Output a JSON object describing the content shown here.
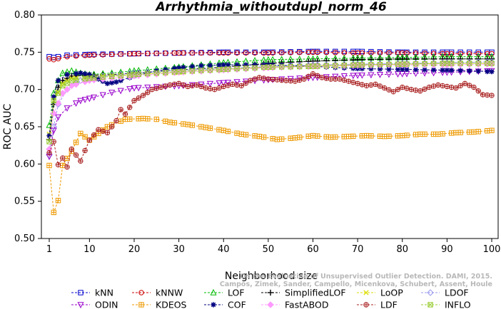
{
  "chart_data": {
    "type": "line",
    "title": "Arrhythmia_withoutdupl_norm_46",
    "xlabel": "Neighborhood size",
    "ylabel": "ROC AUC",
    "xlim": [
      0,
      100
    ],
    "ylim": [
      0.5,
      0.8
    ],
    "x_ticks": [
      "1",
      "10",
      "20",
      "30",
      "40",
      "50",
      "60",
      "70",
      "80",
      "90",
      "100"
    ],
    "y_ticks": [
      "0.50",
      "0.55",
      "0.60",
      "0.65",
      "0.70",
      "0.75",
      "0.80"
    ],
    "grid": false,
    "legend_position": "bottom",
    "watermark": [
      "Campos, Zimek, Sander, Campello, Micenkova, Schubert, Assent, Houle",
      "On the Evaluation of Unsupervised Outlier Detection. DAMI, 2015."
    ],
    "series": [
      {
        "name": "kNN",
        "color": "#0000cc",
        "marker": "square",
        "points": [
          [
            1,
            0.744
          ],
          [
            2,
            0.743
          ],
          [
            5,
            0.746
          ],
          [
            10,
            0.747
          ],
          [
            20,
            0.748
          ],
          [
            30,
            0.749
          ],
          [
            40,
            0.75
          ],
          [
            50,
            0.75
          ],
          [
            60,
            0.751
          ],
          [
            70,
            0.751
          ],
          [
            80,
            0.75
          ],
          [
            90,
            0.75
          ],
          [
            100,
            0.75
          ]
        ]
      },
      {
        "name": "kNNW",
        "color": "#cc0000",
        "marker": "circle",
        "points": [
          [
            1,
            0.741
          ],
          [
            2,
            0.74
          ],
          [
            5,
            0.744
          ],
          [
            10,
            0.746
          ],
          [
            20,
            0.748
          ],
          [
            30,
            0.749
          ],
          [
            40,
            0.749
          ],
          [
            50,
            0.749
          ],
          [
            60,
            0.75
          ],
          [
            70,
            0.749
          ],
          [
            80,
            0.749
          ],
          [
            90,
            0.748
          ],
          [
            100,
            0.748
          ]
        ]
      },
      {
        "name": "LOF",
        "color": "#00bb00",
        "marker": "triangle-up",
        "points": [
          [
            1,
            0.652
          ],
          [
            2,
            0.695
          ],
          [
            3,
            0.712
          ],
          [
            4,
            0.722
          ],
          [
            6,
            0.725
          ],
          [
            8,
            0.722
          ],
          [
            10,
            0.72
          ],
          [
            15,
            0.722
          ],
          [
            20,
            0.725
          ],
          [
            30,
            0.73
          ],
          [
            40,
            0.736
          ],
          [
            50,
            0.74
          ],
          [
            60,
            0.741
          ],
          [
            70,
            0.742
          ],
          [
            80,
            0.743
          ],
          [
            90,
            0.744
          ],
          [
            100,
            0.744
          ]
        ]
      },
      {
        "name": "SimplifiedLOF",
        "color": "#000000",
        "marker": "plus",
        "points": [
          [
            1,
            0.633
          ],
          [
            2,
            0.68
          ],
          [
            3,
            0.703
          ],
          [
            4,
            0.712
          ],
          [
            6,
            0.718
          ],
          [
            10,
            0.719
          ],
          [
            15,
            0.72
          ],
          [
            20,
            0.722
          ],
          [
            30,
            0.726
          ],
          [
            40,
            0.73
          ],
          [
            50,
            0.735
          ],
          [
            60,
            0.738
          ],
          [
            70,
            0.74
          ],
          [
            80,
            0.741
          ],
          [
            90,
            0.741
          ],
          [
            100,
            0.741
          ]
        ]
      },
      {
        "name": "LoOP",
        "color": "#dddd00",
        "marker": "x",
        "points": [
          [
            1,
            0.64
          ],
          [
            2,
            0.685
          ],
          [
            4,
            0.708
          ],
          [
            6,
            0.715
          ],
          [
            10,
            0.717
          ],
          [
            20,
            0.72
          ],
          [
            30,
            0.723
          ],
          [
            40,
            0.727
          ],
          [
            50,
            0.73
          ],
          [
            60,
            0.732
          ],
          [
            70,
            0.733
          ],
          [
            80,
            0.734
          ],
          [
            90,
            0.735
          ],
          [
            100,
            0.735
          ]
        ]
      },
      {
        "name": "LDOF",
        "color": "#9999ee",
        "marker": "diamond",
        "points": [
          [
            1,
            0.612
          ],
          [
            2,
            0.65
          ],
          [
            3,
            0.68
          ],
          [
            5,
            0.7
          ],
          [
            8,
            0.712
          ],
          [
            10,
            0.716
          ],
          [
            20,
            0.722
          ],
          [
            30,
            0.726
          ],
          [
            40,
            0.728
          ],
          [
            50,
            0.731
          ],
          [
            60,
            0.733
          ],
          [
            70,
            0.734
          ],
          [
            80,
            0.735
          ],
          [
            90,
            0.736
          ],
          [
            100,
            0.737
          ]
        ]
      },
      {
        "name": "ODIN",
        "color": "#9900cc",
        "marker": "triangle-down",
        "points": [
          [
            1,
            0.61
          ],
          [
            2,
            0.645
          ],
          [
            3,
            0.663
          ],
          [
            5,
            0.675
          ],
          [
            8,
            0.685
          ],
          [
            10,
            0.688
          ],
          [
            15,
            0.696
          ],
          [
            20,
            0.702
          ],
          [
            30,
            0.705
          ],
          [
            40,
            0.709
          ],
          [
            50,
            0.713
          ],
          [
            60,
            0.716
          ],
          [
            70,
            0.719
          ],
          [
            80,
            0.721
          ],
          [
            90,
            0.723
          ],
          [
            100,
            0.725
          ]
        ]
      },
      {
        "name": "KDEOS",
        "color": "#ee9900",
        "marker": "square-cross",
        "points": [
          [
            1,
            0.598
          ],
          [
            2,
            0.535
          ],
          [
            3,
            0.551
          ],
          [
            4,
            0.598
          ],
          [
            6,
            0.617
          ],
          [
            8,
            0.641
          ],
          [
            10,
            0.632
          ],
          [
            12,
            0.641
          ],
          [
            14,
            0.65
          ],
          [
            18,
            0.66
          ],
          [
            22,
            0.661
          ],
          [
            25,
            0.66
          ],
          [
            28,
            0.656
          ],
          [
            32,
            0.653
          ],
          [
            36,
            0.649
          ],
          [
            40,
            0.645
          ],
          [
            44,
            0.64
          ],
          [
            48,
            0.637
          ],
          [
            52,
            0.633
          ],
          [
            56,
            0.635
          ],
          [
            60,
            0.638
          ],
          [
            64,
            0.636
          ],
          [
            68,
            0.637
          ],
          [
            72,
            0.638
          ],
          [
            76,
            0.637
          ],
          [
            80,
            0.638
          ],
          [
            84,
            0.64
          ],
          [
            88,
            0.64
          ],
          [
            92,
            0.642
          ],
          [
            96,
            0.643
          ],
          [
            100,
            0.645
          ]
        ]
      },
      {
        "name": "COF",
        "color": "#000080",
        "marker": "asterisk",
        "points": [
          [
            1,
            0.638
          ],
          [
            2,
            0.69
          ],
          [
            3,
            0.712
          ],
          [
            5,
            0.72
          ],
          [
            8,
            0.722
          ],
          [
            10,
            0.72
          ],
          [
            12,
            0.714
          ],
          [
            14,
            0.708
          ],
          [
            16,
            0.71
          ],
          [
            20,
            0.718
          ],
          [
            25,
            0.725
          ],
          [
            30,
            0.729
          ],
          [
            35,
            0.732
          ],
          [
            40,
            0.733
          ],
          [
            50,
            0.733
          ],
          [
            60,
            0.731
          ],
          [
            70,
            0.728
          ],
          [
            80,
            0.727
          ],
          [
            90,
            0.726
          ],
          [
            100,
            0.724
          ]
        ]
      },
      {
        "name": "FastABOD",
        "color": "#ff99ff",
        "marker": "diamond-filled",
        "points": [
          [
            1,
            0.62
          ],
          [
            2,
            0.668
          ],
          [
            4,
            0.695
          ],
          [
            6,
            0.705
          ],
          [
            10,
            0.712
          ],
          [
            20,
            0.718
          ],
          [
            30,
            0.723
          ],
          [
            40,
            0.726
          ],
          [
            50,
            0.729
          ],
          [
            60,
            0.731
          ],
          [
            70,
            0.732
          ],
          [
            80,
            0.733
          ],
          [
            90,
            0.733
          ],
          [
            100,
            0.734
          ]
        ]
      },
      {
        "name": "LDF",
        "color": "#aa2222",
        "marker": "circle-plus",
        "points": [
          [
            1,
            0.615
          ],
          [
            2,
            0.63
          ],
          [
            3,
            0.599
          ],
          [
            4,
            0.608
          ],
          [
            5,
            0.596
          ],
          [
            6,
            0.62
          ],
          [
            8,
            0.604
          ],
          [
            10,
            0.632
          ],
          [
            12,
            0.646
          ],
          [
            14,
            0.642
          ],
          [
            16,
            0.658
          ],
          [
            17,
            0.673
          ],
          [
            18,
            0.667
          ],
          [
            19,
            0.676
          ],
          [
            20,
            0.685
          ],
          [
            22,
            0.692
          ],
          [
            24,
            0.7
          ],
          [
            26,
            0.703
          ],
          [
            28,
            0.706
          ],
          [
            30,
            0.708
          ],
          [
            32,
            0.704
          ],
          [
            34,
            0.706
          ],
          [
            36,
            0.702
          ],
          [
            38,
            0.7
          ],
          [
            40,
            0.704
          ],
          [
            42,
            0.707
          ],
          [
            44,
            0.705
          ],
          [
            46,
            0.712
          ],
          [
            48,
            0.716
          ],
          [
            50,
            0.714
          ],
          [
            52,
            0.713
          ],
          [
            54,
            0.712
          ],
          [
            56,
            0.711
          ],
          [
            58,
            0.714
          ],
          [
            60,
            0.721
          ],
          [
            62,
            0.716
          ],
          [
            64,
            0.714
          ],
          [
            66,
            0.714
          ],
          [
            68,
            0.711
          ],
          [
            70,
            0.708
          ],
          [
            72,
            0.705
          ],
          [
            74,
            0.707
          ],
          [
            76,
            0.702
          ],
          [
            78,
            0.697
          ],
          [
            80,
            0.703
          ],
          [
            82,
            0.7
          ],
          [
            84,
            0.698
          ],
          [
            86,
            0.703
          ],
          [
            88,
            0.706
          ],
          [
            90,
            0.704
          ],
          [
            92,
            0.702
          ],
          [
            94,
            0.708
          ],
          [
            96,
            0.703
          ],
          [
            98,
            0.693
          ],
          [
            100,
            0.692
          ]
        ]
      },
      {
        "name": "INFLO",
        "color": "#99cc33",
        "marker": "square-x",
        "points": [
          [
            1,
            0.63
          ],
          [
            2,
            0.685
          ],
          [
            4,
            0.705
          ],
          [
            6,
            0.712
          ],
          [
            10,
            0.715
          ],
          [
            20,
            0.72
          ],
          [
            30,
            0.724
          ],
          [
            40,
            0.727
          ],
          [
            50,
            0.73
          ],
          [
            60,
            0.731
          ],
          [
            70,
            0.733
          ],
          [
            80,
            0.734
          ],
          [
            90,
            0.735
          ],
          [
            100,
            0.735
          ]
        ]
      }
    ]
  }
}
